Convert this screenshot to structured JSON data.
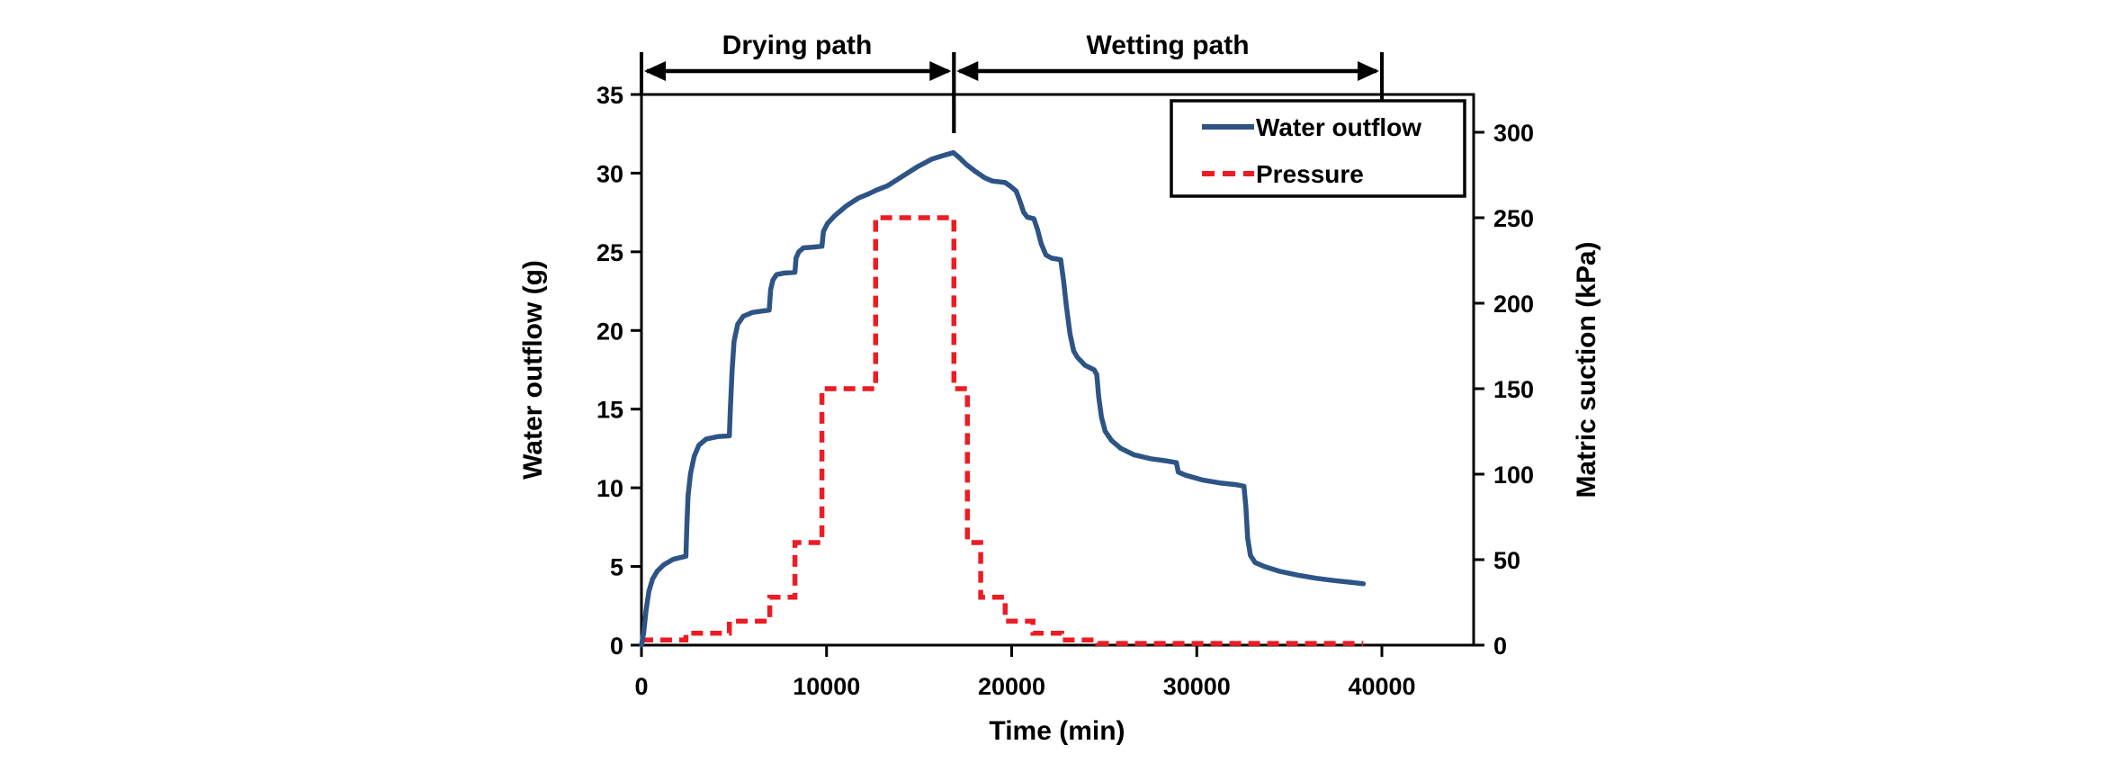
{
  "figure": {
    "background": "#ffffff",
    "axis_color": "#000000",
    "annotations": {
      "drying_label": "Drying path",
      "wetting_label": "Wetting path"
    }
  },
  "chart_data": {
    "type": "line",
    "title": "",
    "xlabel": "Time (min)",
    "ylabel_left": "Water outflow (g)",
    "ylabel_right": "Matric suction (kPa)",
    "x_ticks": [
      0,
      10000,
      20000,
      30000,
      40000
    ],
    "x_range": [
      0,
      45000
    ],
    "y_left_ticks": [
      0,
      5,
      10,
      15,
      20,
      25,
      30,
      35
    ],
    "y_left_range": [
      0,
      35
    ],
    "y_right_ticks": [
      0,
      50,
      100,
      150,
      200,
      250,
      300
    ],
    "y_right_range": [
      0,
      322
    ],
    "grid": false,
    "legend_position": "top-right-inside",
    "legend": [
      {
        "label": "Water outflow",
        "color": "#2E5486",
        "style": "solid"
      },
      {
        "label": "Pressure",
        "color": "#EC1C24",
        "style": "dashed"
      }
    ],
    "annotations": [
      {
        "label": "Drying path",
        "from": 0,
        "to": 16880
      },
      {
        "label": "Wetting path",
        "from": 16880,
        "to": 40000
      }
    ],
    "series": [
      {
        "name": "Water outflow",
        "axis": "left",
        "color": "#2E5486",
        "style": "solid",
        "points": [
          [
            0,
            0
          ],
          [
            120,
            0.8
          ],
          [
            250,
            2.2
          ],
          [
            400,
            3.4
          ],
          [
            600,
            4.2
          ],
          [
            850,
            4.7
          ],
          [
            1200,
            5.1
          ],
          [
            1700,
            5.45
          ],
          [
            2400,
            5.65
          ],
          [
            2450,
            7.5
          ],
          [
            2520,
            9.5
          ],
          [
            2650,
            10.9
          ],
          [
            2850,
            12.0
          ],
          [
            3100,
            12.7
          ],
          [
            3500,
            13.1
          ],
          [
            4100,
            13.25
          ],
          [
            4750,
            13.3
          ],
          [
            4800,
            15.0
          ],
          [
            4900,
            17.5
          ],
          [
            5000,
            19.3
          ],
          [
            5200,
            20.4
          ],
          [
            5500,
            20.9
          ],
          [
            6000,
            21.15
          ],
          [
            6900,
            21.3
          ],
          [
            6980,
            22.6
          ],
          [
            7100,
            23.2
          ],
          [
            7300,
            23.55
          ],
          [
            7700,
            23.65
          ],
          [
            8290,
            23.7
          ],
          [
            8350,
            24.6
          ],
          [
            8500,
            25.0
          ],
          [
            8750,
            25.25
          ],
          [
            9300,
            25.3
          ],
          [
            9750,
            25.35
          ],
          [
            9830,
            26.3
          ],
          [
            10050,
            26.8
          ],
          [
            10450,
            27.3
          ],
          [
            11050,
            27.9
          ],
          [
            11700,
            28.4
          ],
          [
            12300,
            28.7
          ],
          [
            12650,
            28.9
          ],
          [
            13300,
            29.2
          ],
          [
            14100,
            29.8
          ],
          [
            14900,
            30.4
          ],
          [
            15700,
            30.9
          ],
          [
            16400,
            31.15
          ],
          [
            16850,
            31.3
          ],
          [
            17150,
            31.0
          ],
          [
            17550,
            30.55
          ],
          [
            18050,
            30.1
          ],
          [
            18550,
            29.7
          ],
          [
            18950,
            29.5
          ],
          [
            19650,
            29.4
          ],
          [
            19950,
            29.15
          ],
          [
            20250,
            28.85
          ],
          [
            20450,
            28.2
          ],
          [
            20650,
            27.5
          ],
          [
            20850,
            27.2
          ],
          [
            21200,
            27.1
          ],
          [
            21400,
            26.4
          ],
          [
            21600,
            25.5
          ],
          [
            21850,
            24.8
          ],
          [
            22150,
            24.6
          ],
          [
            22650,
            24.5
          ],
          [
            22800,
            23.2
          ],
          [
            22950,
            21.6
          ],
          [
            23150,
            19.8
          ],
          [
            23350,
            18.7
          ],
          [
            23550,
            18.3
          ],
          [
            23950,
            17.8
          ],
          [
            24450,
            17.5
          ],
          [
            24600,
            17.2
          ],
          [
            24700,
            15.8
          ],
          [
            24850,
            14.5
          ],
          [
            25050,
            13.6
          ],
          [
            25400,
            13.0
          ],
          [
            25900,
            12.5
          ],
          [
            26600,
            12.1
          ],
          [
            27500,
            11.85
          ],
          [
            28400,
            11.7
          ],
          [
            28900,
            11.6
          ],
          [
            29000,
            11.0
          ],
          [
            29400,
            10.8
          ],
          [
            30300,
            10.5
          ],
          [
            31300,
            10.3
          ],
          [
            32100,
            10.2
          ],
          [
            32550,
            10.1
          ],
          [
            32650,
            8.8
          ],
          [
            32750,
            6.8
          ],
          [
            32900,
            5.7
          ],
          [
            33150,
            5.25
          ],
          [
            33650,
            5.0
          ],
          [
            34450,
            4.7
          ],
          [
            35450,
            4.45
          ],
          [
            36450,
            4.25
          ],
          [
            37450,
            4.1
          ],
          [
            38300,
            4.0
          ],
          [
            39000,
            3.9
          ]
        ]
      },
      {
        "name": "Pressure",
        "axis": "right",
        "color": "#EC1C24",
        "style": "dashed",
        "step": true,
        "points": [
          [
            0,
            3
          ],
          [
            2400,
            7
          ],
          [
            4750,
            14
          ],
          [
            6930,
            28
          ],
          [
            8290,
            60
          ],
          [
            9750,
            150
          ],
          [
            12650,
            250
          ],
          [
            16880,
            150
          ],
          [
            17610,
            60
          ],
          [
            18330,
            28
          ],
          [
            19650,
            14
          ],
          [
            21150,
            7
          ],
          [
            22700,
            3
          ],
          [
            24650,
            1
          ]
        ],
        "end_t": 39000
      }
    ]
  }
}
